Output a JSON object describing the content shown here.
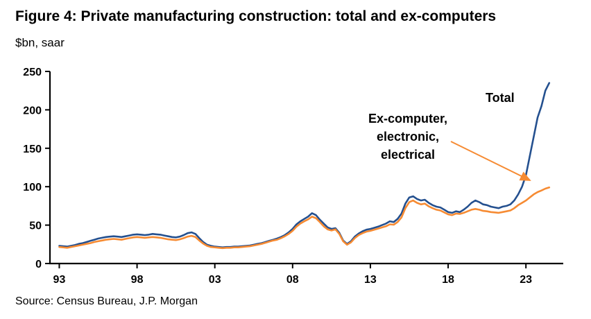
{
  "header": {
    "title": "Figure 4: Private manufacturing construction: total and ex-computers",
    "subtitle": "$bn, saar"
  },
  "footer": {
    "source": "Source: Census Bureau, J.P. Morgan"
  },
  "annotations": {
    "total_label": "Total",
    "ex_label_line1": "Ex-computer,",
    "ex_label_line2": "electronic,",
    "ex_label_line3": "electrical"
  },
  "chart_data": {
    "type": "line",
    "title": "Figure 4: Private manufacturing construction: total and ex-computers",
    "ylabel": "$bn, saar",
    "grid": false,
    "legend_position": "annotated-on-chart",
    "ylim": [
      0,
      250
    ],
    "yticks": [
      0,
      50,
      100,
      150,
      200,
      250
    ],
    "xlim": [
      1992.4,
      2025.4
    ],
    "xticks": [
      {
        "value": 1993,
        "label": "93"
      },
      {
        "value": 1998,
        "label": "98"
      },
      {
        "value": 2003,
        "label": "03"
      },
      {
        "value": 2008,
        "label": "08"
      },
      {
        "value": 2013,
        "label": "13"
      },
      {
        "value": 2018,
        "label": "18"
      },
      {
        "value": 2023,
        "label": "23"
      }
    ],
    "x_start": 1993.0,
    "x_step_years": 0.25,
    "x_end": 2024.5,
    "series": [
      {
        "name": "Total",
        "color": "#24508F",
        "values": [
          23,
          22.5,
          22,
          23,
          24,
          25.5,
          26.5,
          28,
          29.5,
          31,
          32.5,
          33.5,
          34.5,
          35,
          35.5,
          35,
          34.5,
          35.5,
          36.5,
          37.5,
          38,
          37.5,
          37,
          37.5,
          38.5,
          38,
          37.5,
          36.5,
          35.5,
          34.5,
          34,
          35,
          37,
          39.5,
          40.5,
          38.5,
          33,
          28,
          24.5,
          23,
          22,
          21.5,
          21,
          21.5,
          21.5,
          22,
          22,
          22.5,
          23,
          23.5,
          24.5,
          25.5,
          26.5,
          28,
          29.5,
          31,
          32.5,
          34.5,
          37,
          40.5,
          45,
          51,
          55,
          58,
          61,
          65.5,
          63,
          57,
          52,
          47,
          45,
          46,
          40,
          30,
          25.5,
          29,
          35,
          39,
          42,
          44,
          45,
          46.5,
          48,
          50,
          52,
          55,
          54,
          58,
          65,
          78,
          86,
          87.5,
          84,
          82,
          83,
          79,
          76,
          74,
          73,
          70,
          67,
          66,
          68,
          67,
          70,
          74,
          79,
          82,
          80,
          77,
          76,
          74,
          73,
          72,
          74,
          75,
          77,
          82,
          90,
          100,
          115,
          140,
          165,
          190,
          205,
          225,
          235
        ]
      },
      {
        "name": "Ex-computer, electronic, electrical",
        "color": "#F68B33",
        "values": [
          21.5,
          21,
          20.5,
          21.5,
          22.5,
          23.5,
          24.5,
          25.5,
          26.5,
          28,
          29,
          30,
          31,
          31.5,
          32,
          31.5,
          31,
          32,
          33,
          34,
          34.5,
          34,
          33.5,
          34,
          34.5,
          34,
          33.5,
          32.5,
          31.5,
          31,
          30.5,
          31.5,
          33,
          35,
          36,
          34.5,
          30,
          26,
          23,
          21.5,
          21,
          20.5,
          20,
          20.5,
          20.5,
          21,
          21,
          21.5,
          22,
          22.5,
          23.5,
          24.5,
          25.5,
          27,
          28.5,
          30,
          31,
          33,
          35.5,
          38.5,
          42.5,
          48,
          52,
          55,
          57.5,
          61,
          59,
          54,
          48.5,
          44.5,
          43,
          44.5,
          38.5,
          29,
          24.5,
          27.5,
          33,
          37,
          39.5,
          41.5,
          42.5,
          44,
          45.5,
          47,
          48.5,
          51,
          50.5,
          54,
          60,
          72,
          80,
          82,
          79,
          77,
          78,
          74.5,
          72,
          70,
          69,
          66.5,
          64,
          63,
          65,
          64.5,
          66,
          68,
          70,
          71,
          70,
          68.5,
          68,
          67,
          66.5,
          66,
          67,
          68,
          69,
          72,
          76,
          79,
          82,
          86,
          90,
          93,
          95,
          97.5,
          99
        ]
      }
    ]
  }
}
